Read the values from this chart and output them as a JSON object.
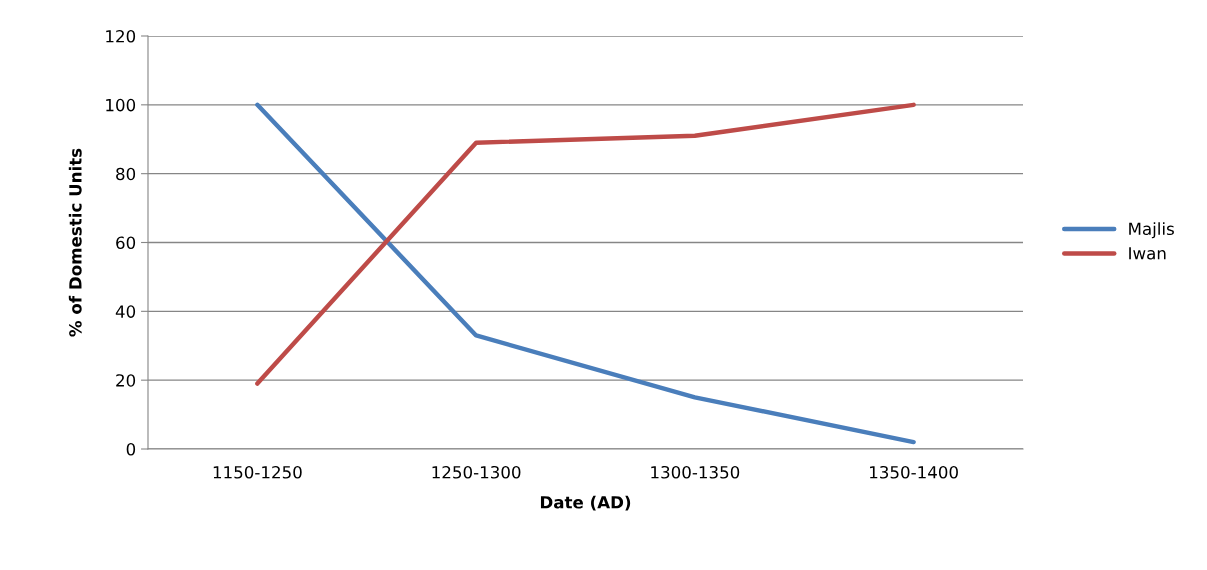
{
  "chart_data": {
    "type": "line",
    "xlabel": "Date (AD)",
    "ylabel": "% of Domestic Units",
    "categories": [
      "1150-1250",
      "1250-1300",
      "1300-1350",
      "1350-1400"
    ],
    "series": [
      {
        "name": "Majlis",
        "color": "#4a7ebb",
        "values": [
          100,
          33,
          15,
          2
        ]
      },
      {
        "name": "Iwan",
        "color": "#be4b48",
        "values": [
          19,
          89,
          91,
          100
        ]
      }
    ],
    "ylim": [
      0,
      120
    ],
    "yticks": [
      0,
      20,
      40,
      60,
      80,
      100,
      120
    ],
    "grid": "y",
    "legend": "right",
    "marker": "none",
    "line_style": "solid"
  }
}
